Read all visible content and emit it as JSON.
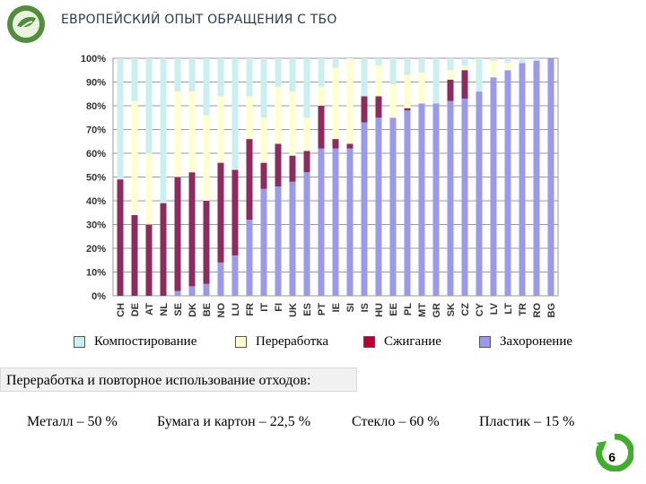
{
  "title": "ЕВРОПЕЙСКИЙ ОПЫТ ОБРАЩЕНИЯ С ТБО",
  "legend": [
    {
      "label": "Компостирование",
      "color": "#c9efef"
    },
    {
      "label": "Переработка",
      "color": "#ffffcc"
    },
    {
      "label": "Сжигание",
      "color": "#8e2b5c"
    },
    {
      "label": "Захоронение",
      "color": "#9999ee"
    }
  ],
  "caption": "Переработка и повторное использование отходов:",
  "facts": [
    {
      "label": "Металл – 50 %"
    },
    {
      "label": "Бумага и картон – 22,5 %"
    },
    {
      "label": "Стекло – 60 %"
    },
    {
      "label": "Пластик – 15 %"
    }
  ],
  "page_number": "6",
  "chart_data": {
    "type": "bar",
    "stacked": true,
    "categories": [
      "CH",
      "DE",
      "AT",
      "NL",
      "SE",
      "DK",
      "BE",
      "NO",
      "LU",
      "FR",
      "IT",
      "FI",
      "UK",
      "ES",
      "PT",
      "IE",
      "SI",
      "IS",
      "HU",
      "EE",
      "PL",
      "MT",
      "GR",
      "SK",
      "CZ",
      "CY",
      "LV",
      "LT",
      "TR",
      "RO",
      "BG"
    ],
    "series": [
      {
        "name": "Захоронение",
        "color": "#9999ee",
        "values": [
          0,
          0,
          0,
          0,
          2,
          4,
          5,
          14,
          17,
          32,
          45,
          46,
          48,
          52,
          62,
          62,
          62,
          73,
          75,
          75,
          78,
          81,
          81,
          82,
          83,
          86,
          92,
          95,
          98,
          99,
          100
        ]
      },
      {
        "name": "Сжигание",
        "color": "#8e2b5c",
        "values": [
          49,
          34,
          30,
          39,
          48,
          48,
          35,
          42,
          36,
          34,
          11,
          18,
          11,
          9,
          18,
          4,
          2,
          11,
          9,
          0,
          1,
          0,
          0,
          9,
          12,
          0,
          0,
          0,
          0,
          0,
          0
        ]
      },
      {
        "name": "Переработка",
        "color": "#ffffcc",
        "values": [
          0,
          48,
          30,
          0,
          36,
          34,
          36,
          28,
          0,
          18,
          19,
          24,
          27,
          14,
          8,
          30,
          36,
          0,
          13,
          14,
          14,
          13,
          0,
          4,
          2,
          0,
          7,
          3,
          0,
          0,
          0
        ]
      },
      {
        "name": "Компостирование",
        "color": "#c9efef",
        "values": [
          51,
          18,
          40,
          61,
          14,
          14,
          24,
          16,
          47,
          16,
          25,
          12,
          14,
          25,
          12,
          4,
          0,
          16,
          3,
          11,
          7,
          6,
          19,
          5,
          3,
          14,
          1,
          2,
          2,
          1,
          0
        ]
      }
    ],
    "ylim": [
      0,
      100
    ],
    "yticks": [
      "0%",
      "10%",
      "20%",
      "30%",
      "40%",
      "50%",
      "60%",
      "70%",
      "80%",
      "90%",
      "100%"
    ],
    "grid": true
  }
}
